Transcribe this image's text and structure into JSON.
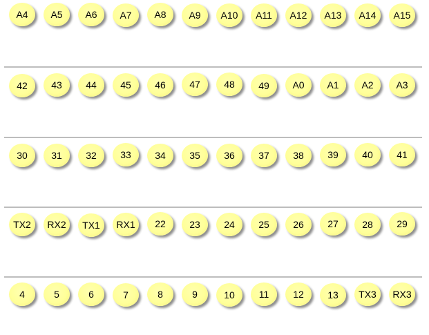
{
  "rows": [
    {
      "pins": [
        "A4",
        "A5",
        "A6",
        "A7",
        "A8",
        "A9",
        "A10",
        "A11",
        "A12",
        "A13",
        "A14",
        "A15"
      ]
    },
    {
      "pins": [
        "42",
        "43",
        "44",
        "45",
        "46",
        "47",
        "48",
        "49",
        "A0",
        "A1",
        "A2",
        "A3"
      ]
    },
    {
      "pins": [
        "30",
        "31",
        "32",
        "33",
        "34",
        "35",
        "36",
        "37",
        "38",
        "39",
        "40",
        "41"
      ]
    },
    {
      "pins": [
        "TX2",
        "RX2",
        "TX1",
        "RX1",
        "22",
        "23",
        "24",
        "25",
        "26",
        "27",
        "28",
        "29"
      ]
    },
    {
      "pins": [
        "4",
        "5",
        "6",
        "7",
        "8",
        "9",
        "10",
        "11",
        "12",
        "13",
        "TX3",
        "RX3"
      ]
    }
  ],
  "colors": {
    "pin_fill": "#ffff99",
    "divider": "#bdbdbd",
    "text": "#000000",
    "background": "#ffffff"
  },
  "icons": {
    "pin": "circle-badge-icon"
  }
}
